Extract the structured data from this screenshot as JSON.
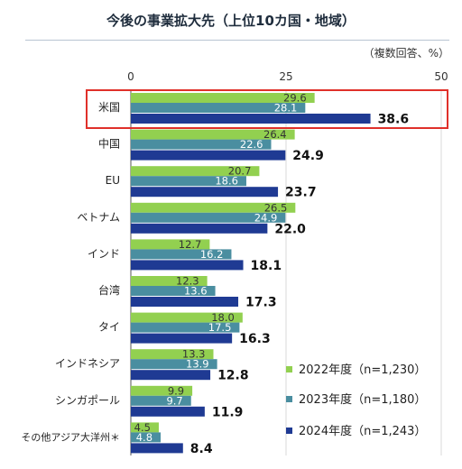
{
  "title": "今後の事業拡大先（上位10カ国・地域）",
  "unit_note": "（複数回答、%）",
  "colors": {
    "y2022": "#92d050",
    "y2023": "#4a8ea0",
    "y2024": "#1f3a93",
    "highlight": "#e0302a"
  },
  "chart_data": {
    "type": "bar",
    "orientation": "horizontal",
    "xlim": [
      0,
      50
    ],
    "xticks": [
      0,
      25,
      50
    ],
    "categories": [
      "米国",
      "中国",
      "EU",
      "ベトナム",
      "インド",
      "台湾",
      "タイ",
      "インドネシア",
      "シンガポール",
      "その他アジア大洋州＊"
    ],
    "highlighted_category": "米国",
    "series": [
      {
        "name": "2022年度（n=1,230）",
        "values": [
          29.6,
          26.4,
          20.7,
          26.5,
          12.7,
          12.3,
          18.0,
          13.3,
          9.9,
          4.5
        ]
      },
      {
        "name": "2023年度（n=1,180）",
        "values": [
          28.1,
          22.6,
          18.6,
          24.9,
          16.2,
          13.6,
          17.5,
          13.9,
          9.7,
          4.8
        ]
      },
      {
        "name": "2024年度（n=1,243）",
        "values": [
          38.6,
          24.9,
          23.7,
          22.0,
          18.1,
          17.3,
          16.3,
          12.8,
          11.9,
          8.4
        ]
      }
    ],
    "legend_position": "bottom-right"
  }
}
